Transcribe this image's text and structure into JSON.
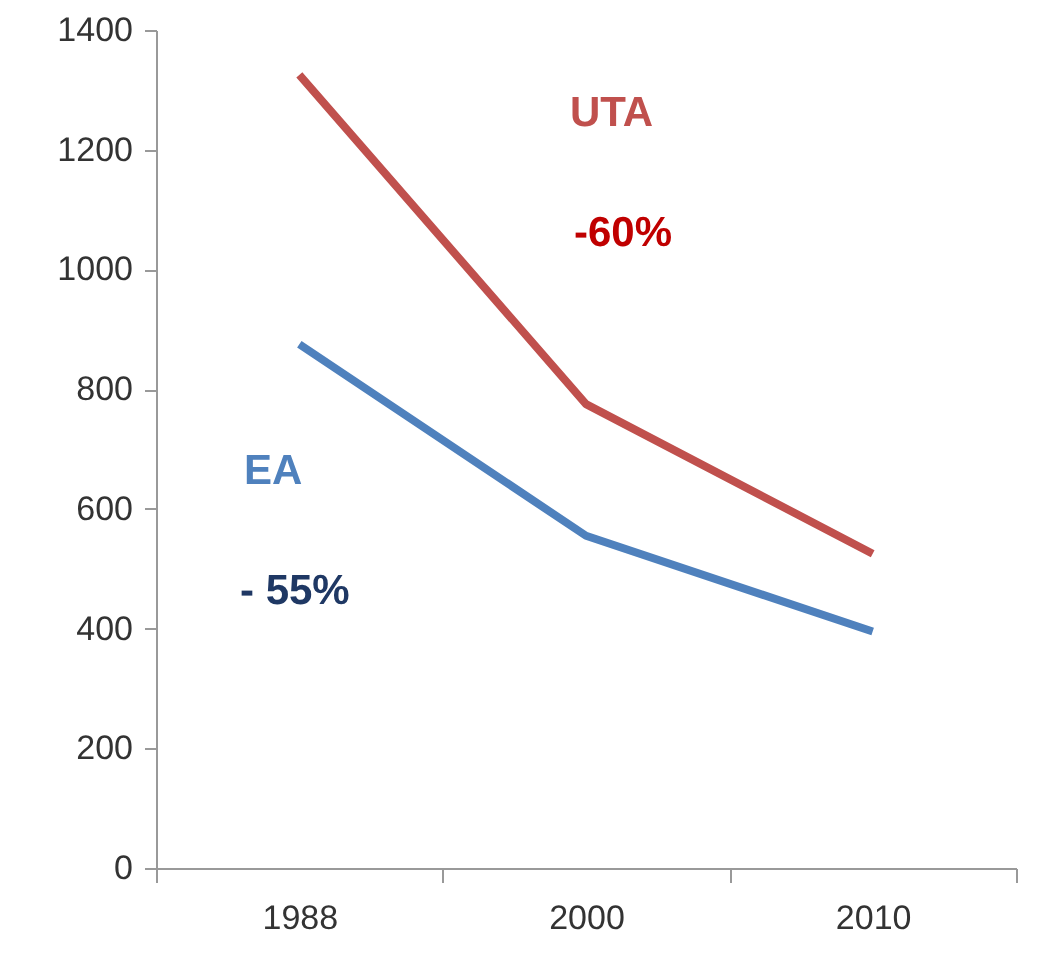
{
  "chart_data": {
    "type": "line",
    "categories": [
      "1988",
      "2000",
      "2010"
    ],
    "series": [
      {
        "name": "UTA",
        "color": "#c0504d",
        "values": [
          1325,
          775,
          525
        ]
      },
      {
        "name": "EA",
        "color": "#4f81bd",
        "values": [
          875,
          555,
          395
        ]
      }
    ],
    "annotations": [
      "-60%",
      "- 55%"
    ],
    "ylim": [
      0,
      1400
    ],
    "yticks": [
      0,
      200,
      400,
      600,
      800,
      1000,
      1200,
      1400
    ],
    "grid": false,
    "marker": "none",
    "line_style": "solid"
  }
}
